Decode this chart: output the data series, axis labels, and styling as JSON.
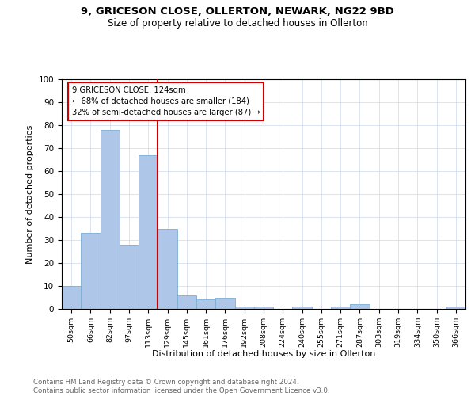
{
  "title1": "9, GRICESON CLOSE, OLLERTON, NEWARK, NG22 9BD",
  "title2": "Size of property relative to detached houses in Ollerton",
  "xlabel": "Distribution of detached houses by size in Ollerton",
  "ylabel": "Number of detached properties",
  "bins": [
    "50sqm",
    "66sqm",
    "82sqm",
    "97sqm",
    "113sqm",
    "129sqm",
    "145sqm",
    "161sqm",
    "176sqm",
    "192sqm",
    "208sqm",
    "224sqm",
    "240sqm",
    "255sqm",
    "271sqm",
    "287sqm",
    "303sqm",
    "319sqm",
    "334sqm",
    "350sqm",
    "366sqm"
  ],
  "counts": [
    10,
    33,
    78,
    28,
    67,
    35,
    6,
    4,
    5,
    1,
    1,
    0,
    1,
    0,
    1,
    2,
    0,
    0,
    0,
    0,
    1
  ],
  "bar_color": "#aec6e8",
  "bar_edge_color": "#7badd4",
  "property_label": "9 GRICESON CLOSE: 124sqm",
  "annotation_line1": "← 68% of detached houses are smaller (184)",
  "annotation_line2": "32% of semi-detached houses are larger (87) →",
  "vline_color": "#cc0000",
  "vline_x_bin_index": 5,
  "grid_color": "#cdd8ec",
  "footer1": "Contains HM Land Registry data © Crown copyright and database right 2024.",
  "footer2": "Contains public sector information licensed under the Open Government Licence v3.0.",
  "ylim": [
    0,
    100
  ],
  "figsize": [
    6.0,
    5.0
  ],
  "dpi": 100
}
